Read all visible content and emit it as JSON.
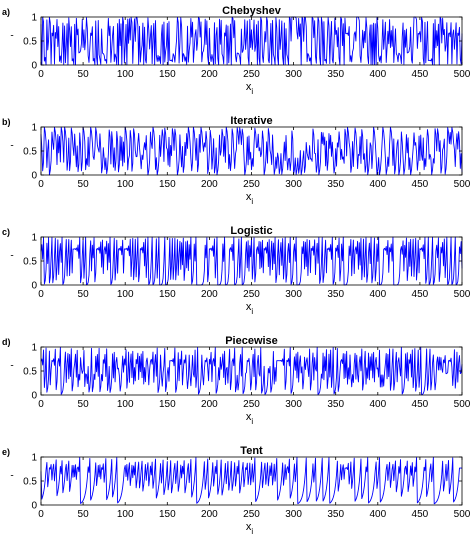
{
  "chart_data": [
    {
      "panel_label": "a)",
      "title": "Chebyshev",
      "type": "line",
      "xlabel": "x",
      "xlabel_sub": "i",
      "ylabel": "-",
      "xlim": [
        0,
        500
      ],
      "ylim": [
        0,
        1
      ],
      "xticks": [
        0,
        50,
        100,
        150,
        200,
        250,
        300,
        350,
        400,
        450,
        500
      ],
      "xtick_labels": [
        "0",
        "50",
        "100",
        "150",
        "200",
        "250",
        "300",
        "350",
        "400",
        "450",
        "500"
      ],
      "yticks": [
        0,
        0.5,
        1
      ],
      "ytick_labels": [
        "0",
        "0.5",
        "1"
      ],
      "map": "chebyshev",
      "seed": 0.7,
      "series": [
        {
          "color": "#0000ff",
          "x_range": [
            0,
            500
          ]
        }
      ]
    },
    {
      "panel_label": "b)",
      "title": "Iterative",
      "type": "line",
      "xlabel": "x",
      "xlabel_sub": "i",
      "ylabel": "-",
      "xlim": [
        0,
        500
      ],
      "ylim": [
        0,
        1
      ],
      "xticks": [
        0,
        50,
        100,
        150,
        200,
        250,
        300,
        350,
        400,
        450,
        500
      ],
      "xtick_labels": [
        "0",
        "50",
        "100",
        "150",
        "200",
        "250",
        "300",
        "350",
        "400",
        "450",
        "500"
      ],
      "yticks": [
        0,
        0.5,
        1
      ],
      "ytick_labels": [
        "0",
        "0.5",
        "1"
      ],
      "map": "iterative",
      "seed": 0.7,
      "series": [
        {
          "color": "#0000ff",
          "x_range": [
            0,
            500
          ]
        }
      ]
    },
    {
      "panel_label": "c)",
      "title": "Logistic",
      "type": "line",
      "xlabel": "x",
      "xlabel_sub": "i",
      "ylabel": "-",
      "xlim": [
        0,
        500
      ],
      "ylim": [
        0,
        1
      ],
      "xticks": [
        0,
        50,
        100,
        150,
        200,
        250,
        300,
        350,
        400,
        450,
        500
      ],
      "xtick_labels": [
        "0",
        "50",
        "100",
        "150",
        "200",
        "250",
        "300",
        "350",
        "400",
        "450",
        "500"
      ],
      "yticks": [
        0,
        0.5,
        1
      ],
      "ytick_labels": [
        "0",
        "0.5",
        "1"
      ],
      "map": "logistic",
      "seed": 0.7,
      "series": [
        {
          "color": "#0000ff",
          "x_range": [
            0,
            500
          ]
        }
      ]
    },
    {
      "panel_label": "d)",
      "title": "Piecewise",
      "type": "line",
      "xlabel": "x",
      "xlabel_sub": "i",
      "ylabel": "-",
      "xlim": [
        0,
        500
      ],
      "ylim": [
        0,
        1
      ],
      "xticks": [
        0,
        50,
        100,
        150,
        200,
        250,
        300,
        350,
        400,
        450,
        500
      ],
      "xtick_labels": [
        "0",
        "50",
        "100",
        "150",
        "200",
        "250",
        "300",
        "350",
        "400",
        "450",
        "500"
      ],
      "yticks": [
        0,
        0.5,
        1
      ],
      "ytick_labels": [
        "0",
        "0.5",
        "1"
      ],
      "map": "piecewise",
      "seed": 0.7,
      "series": [
        {
          "color": "#0000ff",
          "x_range": [
            0,
            500
          ]
        }
      ]
    },
    {
      "panel_label": "e)",
      "title": "Tent",
      "type": "line",
      "xlabel": "x",
      "xlabel_sub": "i",
      "ylabel": "-",
      "xlim": [
        0,
        500
      ],
      "ylim": [
        0,
        1
      ],
      "xticks": [
        0,
        50,
        100,
        150,
        200,
        250,
        300,
        350,
        400,
        450,
        500
      ],
      "xtick_labels": [
        "0",
        "50",
        "100",
        "150",
        "200",
        "250",
        "300",
        "350",
        "400",
        "450",
        "500"
      ],
      "yticks": [
        0,
        0.5,
        1
      ],
      "ytick_labels": [
        "0",
        "0.5",
        "1"
      ],
      "map": "tent",
      "seed": 0.7,
      "series": [
        {
          "color": "#0000ff",
          "x_range": [
            0,
            500
          ]
        }
      ]
    }
  ]
}
